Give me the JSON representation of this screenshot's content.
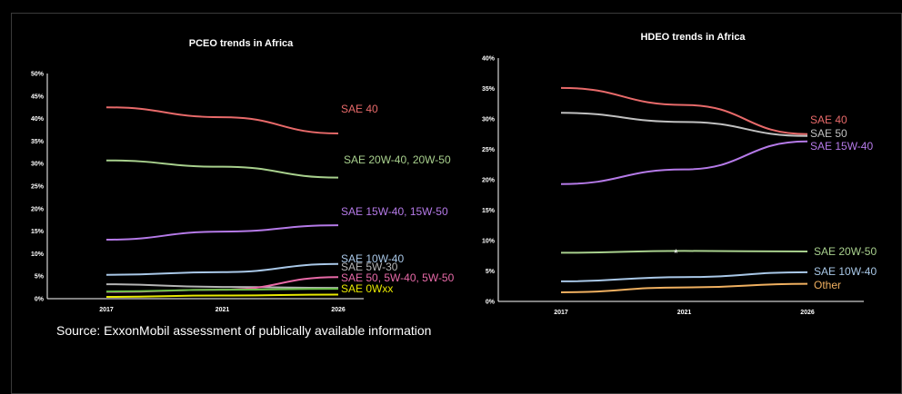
{
  "source_note": "Source: ExxonMobil assessment of publically available information",
  "chart_data": [
    {
      "type": "line",
      "title": "PCEO trends in Africa",
      "x": [
        "2017",
        "2021",
        "2026"
      ],
      "ylim": [
        0,
        50
      ],
      "yticks": [
        "0%",
        "5%",
        "10%",
        "15%",
        "20%",
        "25%",
        "30%",
        "35%",
        "40%",
        "45%",
        "50%"
      ],
      "grid": false,
      "series": [
        {
          "name": "SAE 40",
          "values": [
            42.5,
            40.3,
            36.7
          ],
          "color": "#e86a6a"
        },
        {
          "name": "SAE 20W-40, 20W-50",
          "values": [
            30.7,
            29.3,
            26.9
          ],
          "color": "#a8d08d"
        },
        {
          "name": "SAE 15W-40, 15W-50",
          "values": [
            13.1,
            14.9,
            16.3
          ],
          "color": "#b57ae8"
        },
        {
          "name": "SAE 10W-40",
          "values": [
            5.3,
            5.9,
            7.7
          ],
          "color": "#a9c8e8"
        },
        {
          "name": "SAE 5W-30",
          "values": [
            3.2,
            2.6,
            2.4
          ],
          "color": "#b5b5b5"
        },
        {
          "name": "SAE 50, 5W-40, 5W-50",
          "values": [
            1.5,
            2.0,
            4.8
          ],
          "color": "#e86aa8"
        },
        {
          "name": "",
          "values": [
            1.6,
            2.0,
            2.2
          ],
          "color": "#6cc04a"
        },
        {
          "name": "SAE 0Wxx",
          "values": [
            0.4,
            0.7,
            0.9
          ],
          "color": "#e8e800"
        }
      ]
    },
    {
      "type": "line",
      "title": "HDEO trends in Africa",
      "x": [
        "2017",
        "2021",
        "2026"
      ],
      "ylim": [
        0,
        40
      ],
      "yticks": [
        "0%",
        "5%",
        "10%",
        "15%",
        "20%",
        "25%",
        "30%",
        "35%",
        "40%"
      ],
      "grid": false,
      "annotation": "*",
      "series": [
        {
          "name": "SAE 40",
          "values": [
            35.1,
            32.3,
            27.5
          ],
          "color": "#e86a6a"
        },
        {
          "name": "SAE 50",
          "values": [
            31.0,
            29.5,
            27.2
          ],
          "color": "#c0c0c0"
        },
        {
          "name": "SAE 15W-40",
          "values": [
            19.3,
            21.7,
            26.3
          ],
          "color": "#b57ae8"
        },
        {
          "name": "SAE 20W-50",
          "values": [
            8.0,
            8.3,
            8.2
          ],
          "color": "#a8d08d"
        },
        {
          "name": "SAE 10W-40",
          "values": [
            3.3,
            4.0,
            4.8
          ],
          "color": "#a9c8e8"
        },
        {
          "name": "Other",
          "values": [
            1.5,
            2.3,
            2.9
          ],
          "color": "#f0b060"
        }
      ]
    }
  ]
}
